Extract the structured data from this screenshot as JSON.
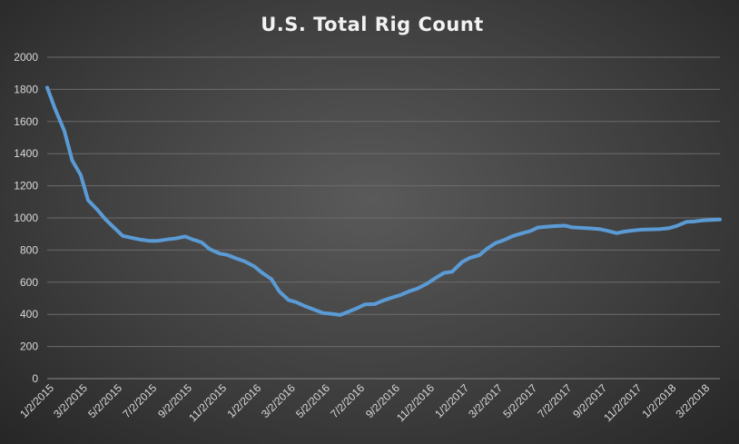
{
  "chart_data": {
    "type": "line",
    "title": "U.S. Total Rig Count",
    "xlabel": "",
    "ylabel": "",
    "ylim": [
      0,
      2000
    ],
    "yticks": [
      0,
      200,
      400,
      600,
      800,
      1000,
      1200,
      1400,
      1600,
      1800,
      2000
    ],
    "grid": true,
    "legend": "none",
    "xticks": [
      "1/2/2015",
      "3/2/2015",
      "5/2/2015",
      "7/2/2015",
      "9/2/2015",
      "11/2/2015",
      "1/2/2016",
      "3/2/2016",
      "5/2/2016",
      "7/2/2016",
      "9/2/2016",
      "11/2/2016",
      "1/2/2017",
      "3/2/2017",
      "5/2/2017",
      "7/2/2017",
      "9/2/2017",
      "11/2/2017",
      "1/2/2018",
      "3/2/2018"
    ],
    "series": [
      {
        "color": "#5b9bd5",
        "x": [
          "2015-01-02",
          "2015-01-16",
          "2015-02-01",
          "2015-02-15",
          "2015-03-02",
          "2015-03-15",
          "2015-04-01",
          "2015-04-15",
          "2015-05-02",
          "2015-05-15",
          "2015-06-01",
          "2015-06-15",
          "2015-07-02",
          "2015-07-15",
          "2015-08-01",
          "2015-08-15",
          "2015-09-02",
          "2015-09-15",
          "2015-10-01",
          "2015-10-15",
          "2015-11-02",
          "2015-11-15",
          "2015-12-01",
          "2015-12-15",
          "2016-01-02",
          "2016-01-15",
          "2016-02-01",
          "2016-02-15",
          "2016-03-02",
          "2016-03-15",
          "2016-04-01",
          "2016-04-15",
          "2016-05-02",
          "2016-05-15",
          "2016-06-01",
          "2016-06-15",
          "2016-07-02",
          "2016-07-15",
          "2016-08-01",
          "2016-08-15",
          "2016-09-02",
          "2016-09-15",
          "2016-10-01",
          "2016-10-15",
          "2016-11-02",
          "2016-11-15",
          "2016-12-01",
          "2016-12-15",
          "2017-01-02",
          "2017-01-15",
          "2017-02-01",
          "2017-02-15",
          "2017-03-02",
          "2017-03-15",
          "2017-04-01",
          "2017-04-15",
          "2017-05-02",
          "2017-05-15",
          "2017-06-01",
          "2017-06-15",
          "2017-07-02",
          "2017-07-15",
          "2017-08-01",
          "2017-08-15",
          "2017-09-02",
          "2017-09-15",
          "2017-10-01",
          "2017-10-15",
          "2017-11-02",
          "2017-11-15",
          "2017-12-01",
          "2017-12-15",
          "2018-01-02",
          "2018-01-15",
          "2018-02-01",
          "2018-02-15",
          "2018-03-02",
          "2018-03-15",
          "2018-04-01"
        ],
        "y": [
          1811,
          1676,
          1543,
          1358,
          1267,
          1111,
          1048,
          990,
          932,
          888,
          875,
          865,
          857,
          857,
          866,
          872,
          884,
          866,
          848,
          806,
          778,
          770,
          748,
          731,
          698,
          660,
          619,
          541,
          489,
          476,
          450,
          431,
          408,
          404,
          396,
          415,
          440,
          462,
          464,
          485,
          506,
          520,
          544,
          560,
          593,
          624,
          658,
          665,
          726,
          751,
          768,
          809,
          844,
          860,
          887,
          902,
          918,
          940,
          946,
          949,
          952,
          941,
          938,
          935,
          930,
          920,
          905,
          915,
          923,
          927,
          929,
          930,
          937,
          950,
          975,
          978,
          985,
          987,
          990
        ]
      }
    ]
  }
}
